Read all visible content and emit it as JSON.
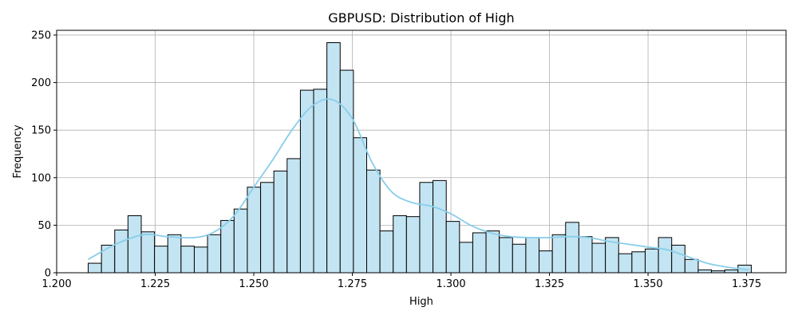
{
  "chart_data": {
    "type": "bar",
    "title": "GBPUSD: Distribution of High",
    "xlabel": "High",
    "ylabel": "Frequency",
    "xlim": [
      1.2,
      1.385
    ],
    "ylim": [
      0,
      255
    ],
    "xticks": [
      "1.200",
      "1.225",
      "1.250",
      "1.275",
      "1.300",
      "1.325",
      "1.350",
      "1.375"
    ],
    "yticks": [
      "0",
      "50",
      "100",
      "150",
      "200",
      "250"
    ],
    "grid": true,
    "bin_start": 1.208,
    "bin_width": 0.0033636,
    "values": [
      10,
      29,
      45,
      60,
      43,
      28,
      40,
      28,
      27,
      40,
      55,
      67,
      90,
      95,
      107,
      120,
      192,
      193,
      242,
      213,
      142,
      108,
      44,
      60,
      59,
      95,
      97,
      54,
      32,
      42,
      44,
      37,
      30,
      37,
      23,
      40,
      53,
      38,
      31,
      37,
      20,
      22,
      25,
      37,
      29,
      14,
      3,
      2,
      3,
      8
    ],
    "kde": {
      "x": [
        1.208,
        1.215,
        1.222,
        1.228,
        1.235,
        1.24,
        1.245,
        1.25,
        1.255,
        1.26,
        1.265,
        1.27,
        1.275,
        1.28,
        1.285,
        1.29,
        1.295,
        1.3,
        1.305,
        1.31,
        1.315,
        1.32,
        1.325,
        1.33,
        1.335,
        1.34,
        1.345,
        1.35,
        1.355,
        1.36,
        1.365,
        1.37,
        1.3755
      ],
      "y": [
        14,
        30,
        40,
        38,
        37,
        43,
        60,
        90,
        120,
        152,
        176,
        182,
        162,
        116,
        85,
        74,
        70,
        62,
        50,
        42,
        38,
        37,
        37,
        38,
        37,
        33,
        30,
        27,
        24,
        17,
        10,
        6,
        3
      ]
    },
    "colors": {
      "bar_fill": "#c3e4f2",
      "bar_edge": "#000000",
      "kde_line": "#87ceeb",
      "grid": "#b0b0b0"
    }
  }
}
